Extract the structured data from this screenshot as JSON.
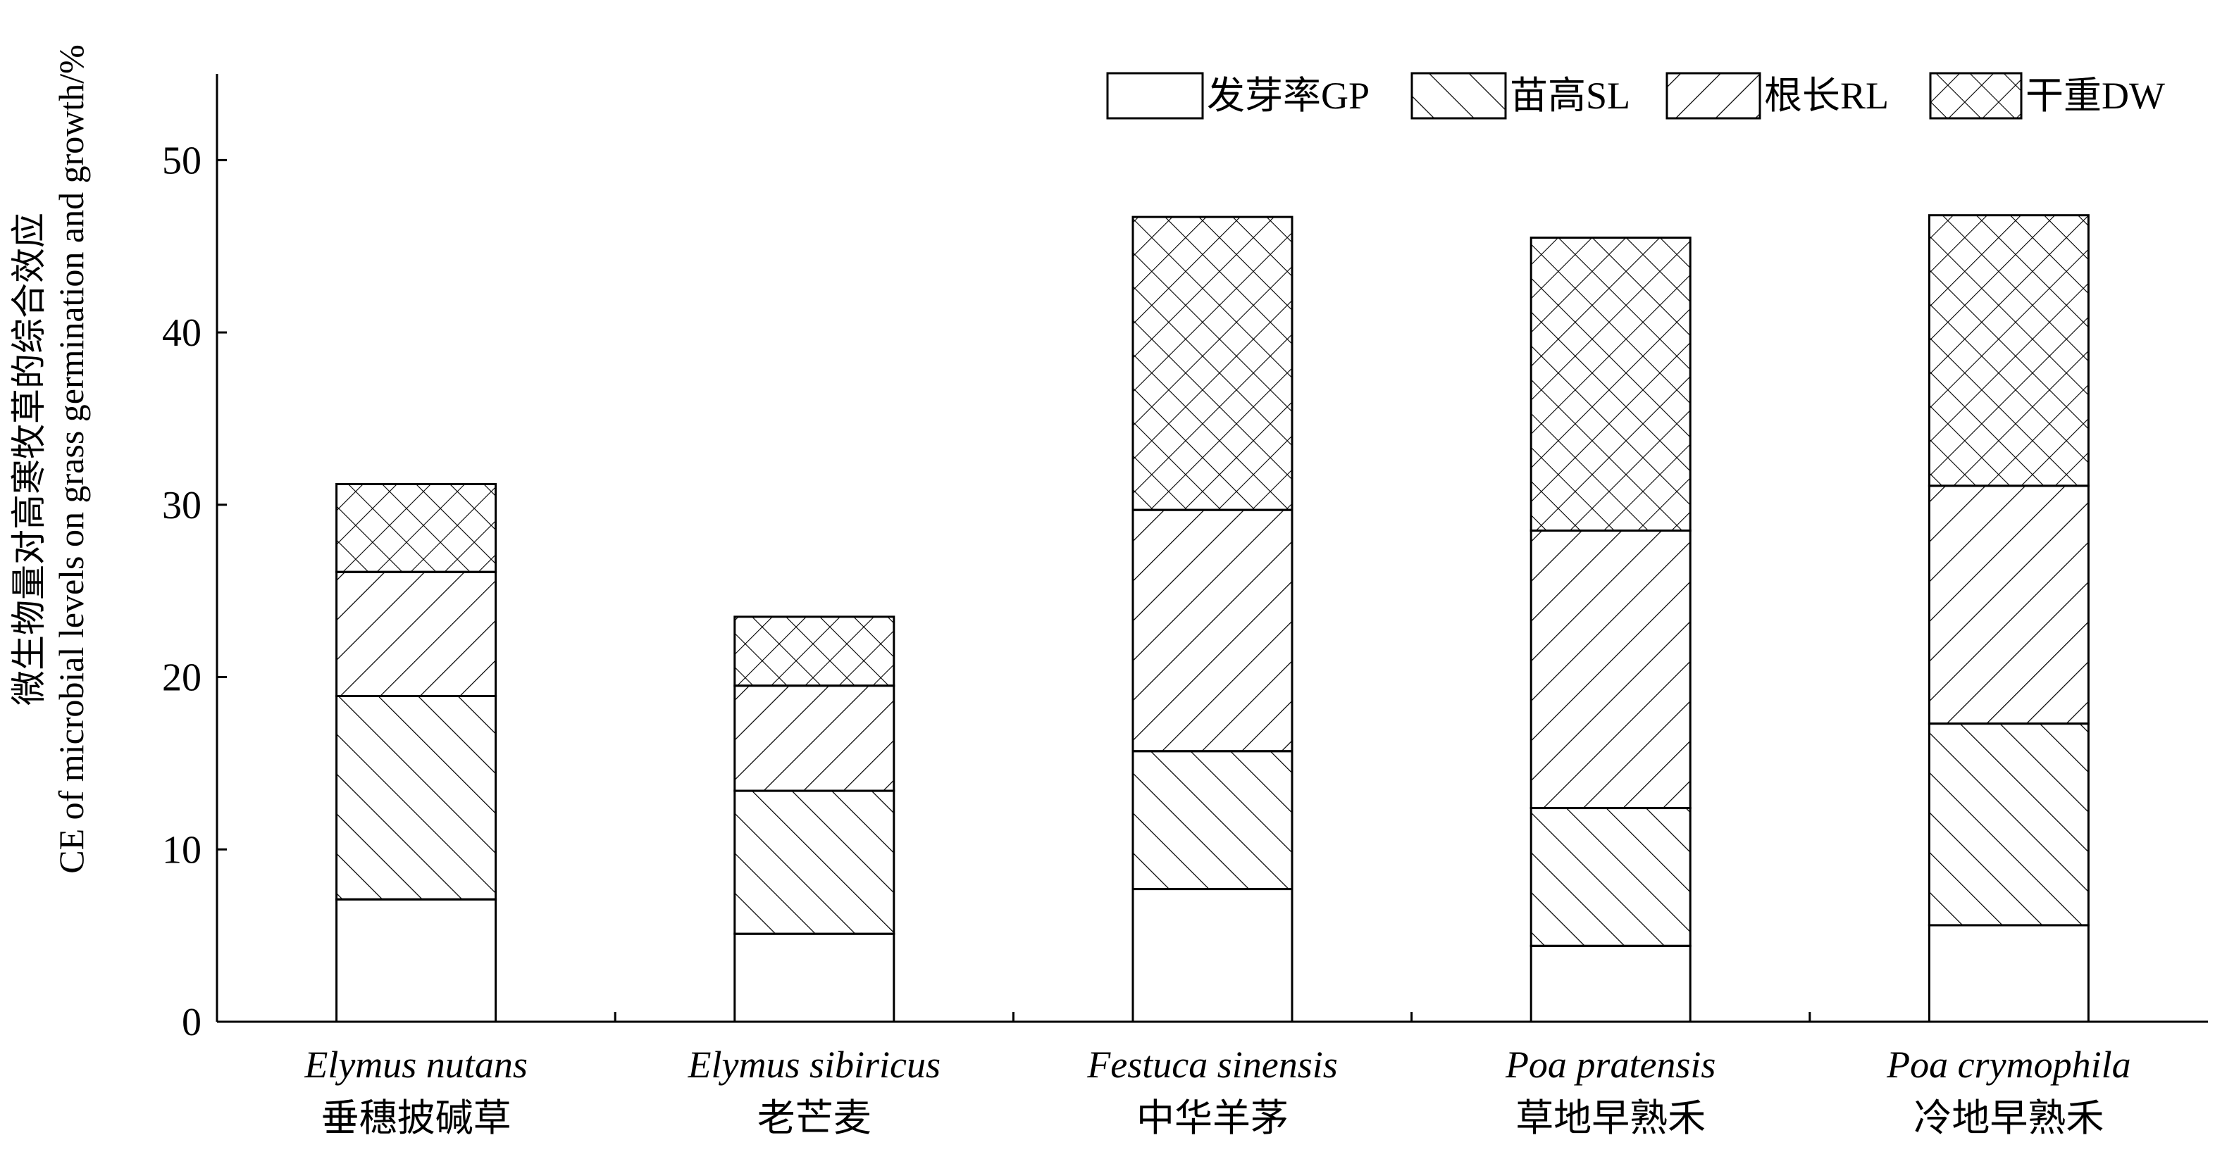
{
  "chart_data": {
    "type": "bar",
    "stacked": true,
    "categories": [
      {
        "latin": "Elymus nutans",
        "chinese": "垂穗披碱草"
      },
      {
        "latin": "Elymus sibiricus",
        "chinese": "老芒麦"
      },
      {
        "latin": "Festuca sinensis",
        "chinese": "中华羊茅"
      },
      {
        "latin": "Poa pratensis",
        "chinese": "草地早熟禾"
      },
      {
        "latin": "Poa crymophila",
        "chinese": "冷地早熟禾"
      }
    ],
    "series": [
      {
        "name": "发芽率GP",
        "pattern": "blank",
        "values": [
          7.1,
          5.1,
          7.7,
          4.4,
          5.6
        ]
      },
      {
        "name": "苗高SL",
        "pattern": "forward-diagonal",
        "values": [
          11.8,
          8.3,
          8.0,
          8.0,
          11.7
        ]
      },
      {
        "name": "根长RL",
        "pattern": "back-diagonal",
        "values": [
          7.2,
          6.1,
          14.0,
          16.1,
          13.8
        ]
      },
      {
        "name": "干重DW",
        "pattern": "crosshatch",
        "values": [
          5.1,
          4.0,
          17.0,
          17.0,
          15.7
        ]
      }
    ],
    "ylabel_cn": "微生物量对高寒牧草的综合效应",
    "ylabel_en": "CE of microbial levels on grass germination and growth/%",
    "ylim": [
      0,
      55
    ],
    "yticks": [
      0,
      10,
      20,
      30,
      40,
      50
    ],
    "legend_position": "top-right",
    "grid": false
  }
}
